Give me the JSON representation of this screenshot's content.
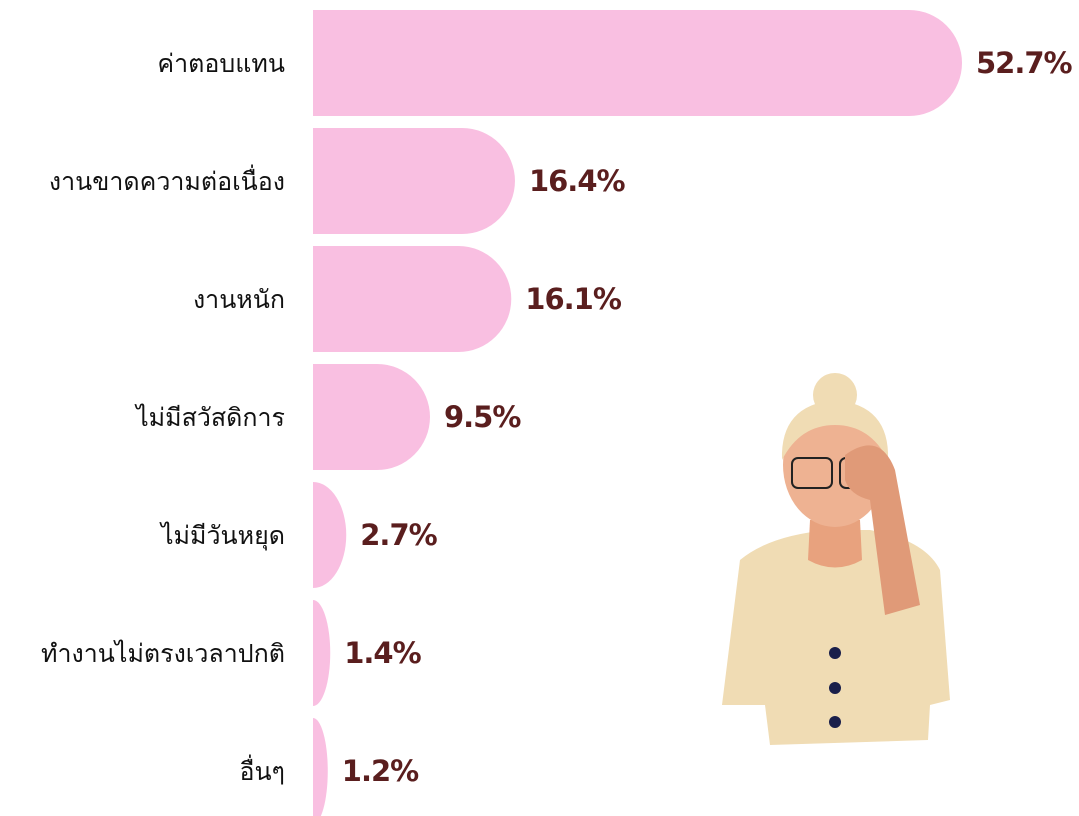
{
  "chart_data": {
    "type": "bar",
    "orientation": "horizontal",
    "categories": [
      "ค่าตอบแทน",
      "งานขาดความต่อเนื่อง",
      "งานหนัก",
      "ไม่มีสวัสดิการ",
      "ไม่มีวันหยุด",
      "ทำงานไม่ตรงเวลาปกติ",
      "อื่นๆ"
    ],
    "values": [
      52.7,
      16.4,
      16.1,
      9.5,
      2.7,
      1.4,
      1.2
    ],
    "value_labels": [
      "52.7%",
      "16.4%",
      "16.1%",
      "9.5%",
      "2.7%",
      "1.4%",
      "1.2%"
    ],
    "color": "#f9bfe1"
  }
}
